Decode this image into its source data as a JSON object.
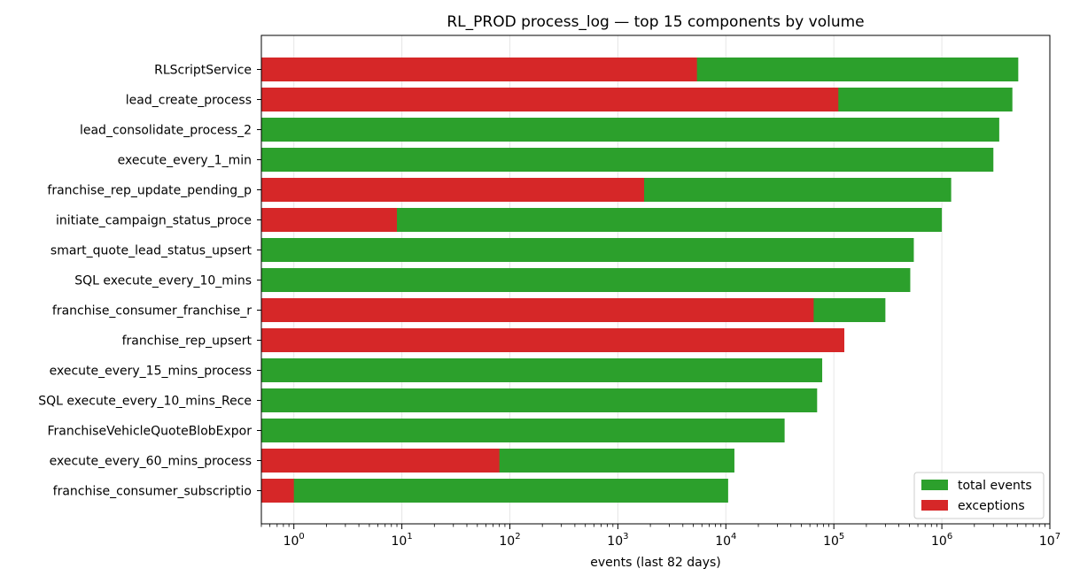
{
  "chart_data": {
    "type": "bar",
    "orientation": "horizontal",
    "scale": "log",
    "title": "RL_PROD process_log — top 15 components by volume",
    "xlabel": "events (last 82 days)",
    "ylabel": "",
    "xlim": [
      0.5,
      10000000
    ],
    "x_ticks": [
      {
        "base": "10",
        "exp": "0",
        "value": 1
      },
      {
        "base": "10",
        "exp": "1",
        "value": 10
      },
      {
        "base": "10",
        "exp": "2",
        "value": 100
      },
      {
        "base": "10",
        "exp": "3",
        "value": 1000
      },
      {
        "base": "10",
        "exp": "4",
        "value": 10000
      },
      {
        "base": "10",
        "exp": "5",
        "value": 100000
      },
      {
        "base": "10",
        "exp": "6",
        "value": 1000000
      },
      {
        "base": "10",
        "exp": "7",
        "value": 10000000
      }
    ],
    "grid": "x",
    "legend_position": "bottom-right",
    "categories": [
      "RLScriptService",
      "lead_create_process",
      "lead_consolidate_process_2",
      "execute_every_1_min",
      "franchise_rep_update_pending_p",
      "initiate_campaign_status_proce",
      "smart_quote_lead_status_upsert",
      "SQL execute_every_10_mins",
      "franchise_consumer_franchise_r",
      "franchise_rep_upsert",
      "execute_every_15_mins_process",
      "SQL execute_every_10_mins_Rece",
      "FranchiseVehicleQuoteBlobExpor",
      "execute_every_60_mins_process",
      "franchise_consumer_subscriptio"
    ],
    "series": [
      {
        "name": "total events",
        "color": "#2ca02c",
        "values": [
          5100000,
          4500000,
          3400000,
          3000000,
          1220000,
          1000000,
          550000,
          510000,
          300000,
          0,
          78000,
          70000,
          35000,
          12000,
          10500
        ]
      },
      {
        "name": "exceptions",
        "color": "#d62728",
        "values": [
          5400,
          110000,
          0,
          0,
          1750,
          9,
          0,
          0,
          65000,
          125000,
          0,
          0,
          0,
          80,
          1
        ]
      }
    ]
  }
}
